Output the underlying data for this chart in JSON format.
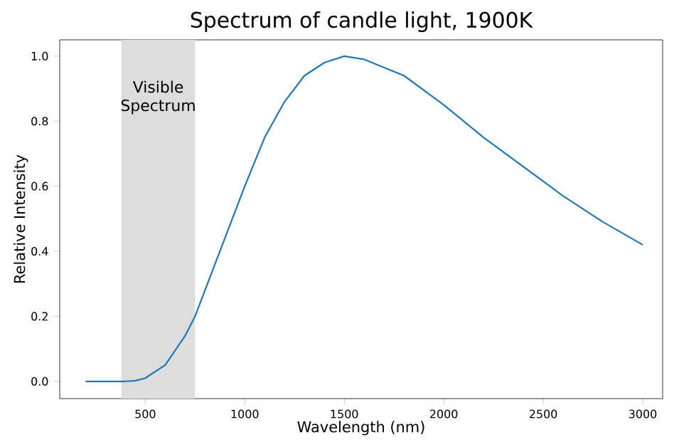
{
  "chart_data": {
    "type": "line",
    "title": "Spectrum of candle light, 1900K",
    "xlabel": "Wavelength (nm)",
    "ylabel": "Relative Intensity",
    "series": [
      {
        "color": "#1f77b4",
        "x": [
          200,
          300,
          400,
          450,
          500,
          600,
          700,
          750,
          800,
          900,
          1000,
          1100,
          1200,
          1300,
          1400,
          1500,
          1600,
          1800,
          2000,
          2200,
          2400,
          2600,
          2800,
          3000
        ],
        "values": [
          0.0,
          0.0,
          0.0,
          0.002,
          0.01,
          0.05,
          0.14,
          0.2,
          0.28,
          0.44,
          0.6,
          0.75,
          0.86,
          0.94,
          0.98,
          1.0,
          0.99,
          0.94,
          0.85,
          0.75,
          0.66,
          0.57,
          0.49,
          0.42
        ]
      }
    ],
    "bands": [
      {
        "axis": "x",
        "from": 380,
        "to": 750,
        "label": "Visible Spectrum",
        "color": "#dddddd"
      }
    ],
    "xlim": [
      70,
      3100
    ],
    "ylim": [
      -0.053,
      1.05
    ],
    "xticks": [
      500,
      1000,
      1500,
      2000,
      2500,
      3000
    ],
    "yticks": [
      {
        "value": 0,
        "label": "0.0"
      },
      {
        "value": 0.2,
        "label": "0.2"
      },
      {
        "value": 0.4,
        "label": "0.4"
      },
      {
        "value": 0.6,
        "label": "0.6"
      },
      {
        "value": 0.8,
        "label": "0.8"
      },
      {
        "value": 1,
        "label": "1.0"
      }
    ],
    "grid": false
  }
}
